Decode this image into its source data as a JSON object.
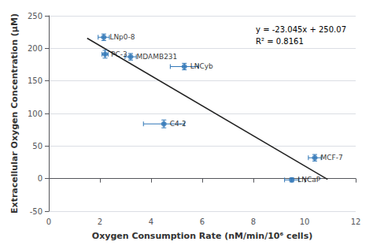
{
  "chart_data": {
    "type": "scatter",
    "x": [
      2.15,
      2.2,
      3.2,
      5.3,
      4.5,
      10.4,
      9.5
    ],
    "values": [
      217,
      191,
      187,
      172,
      84,
      32,
      -2
    ],
    "xerr": [
      0.22,
      0.12,
      0.22,
      0.55,
      0.8,
      0.25,
      0.28
    ],
    "yerr": [
      5,
      6,
      5,
      5,
      6,
      5,
      3
    ],
    "labels": [
      "LNp0-8",
      "PC-3",
      "MDAMB231",
      "LNCyb",
      "C4-2",
      "MCF-7",
      "LNCaP"
    ],
    "color": "#2e75b6",
    "line": {
      "x": [
        1.5,
        10.9
      ],
      "y": [
        215.5025,
        -1.1205
      ],
      "color": "#222222"
    },
    "annotations": [
      "y = -23.045x + 250.07",
      "R² = 0.8161"
    ],
    "xlabel": "Oxygen Consumption Rate (nM/min/10⁶ cells)",
    "ylabel": "Extracellular Oxygen Concentration (μM)",
    "xlim": [
      0,
      12
    ],
    "xticks": [
      0,
      2,
      4,
      6,
      8,
      10,
      12
    ],
    "ylim": [
      -50,
      250
    ],
    "yticks": [
      -50,
      0,
      50,
      100,
      150,
      200,
      250
    ],
    "grid": "y"
  }
}
